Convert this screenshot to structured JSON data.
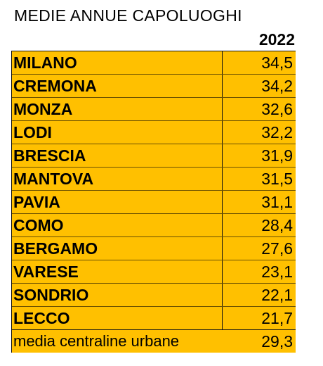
{
  "title": "MEDIE ANNUE CAPOLUOGHI",
  "year": "2022",
  "rows": [
    {
      "city": "MILANO",
      "value": "34,5"
    },
    {
      "city": "CREMONA",
      "value": "34,2"
    },
    {
      "city": "MONZA",
      "value": "32,6"
    },
    {
      "city": "LODI",
      "value": "32,2"
    },
    {
      "city": "BRESCIA",
      "value": "31,9"
    },
    {
      "city": "MANTOVA",
      "value": "31,5"
    },
    {
      "city": "PAVIA",
      "value": "31,1"
    },
    {
      "city": "COMO",
      "value": "28,4"
    },
    {
      "city": "BERGAMO",
      "value": "27,6"
    },
    {
      "city": "VARESE",
      "value": "23,1"
    },
    {
      "city": "SONDRIO",
      "value": "22,1"
    },
    {
      "city": "LECCO",
      "value": "21,7"
    }
  ],
  "summary": {
    "label": "media centraline urbane",
    "value": "29,3"
  },
  "colors": {
    "fill": "#ffc000",
    "border": "#111111",
    "text": "#000000"
  }
}
